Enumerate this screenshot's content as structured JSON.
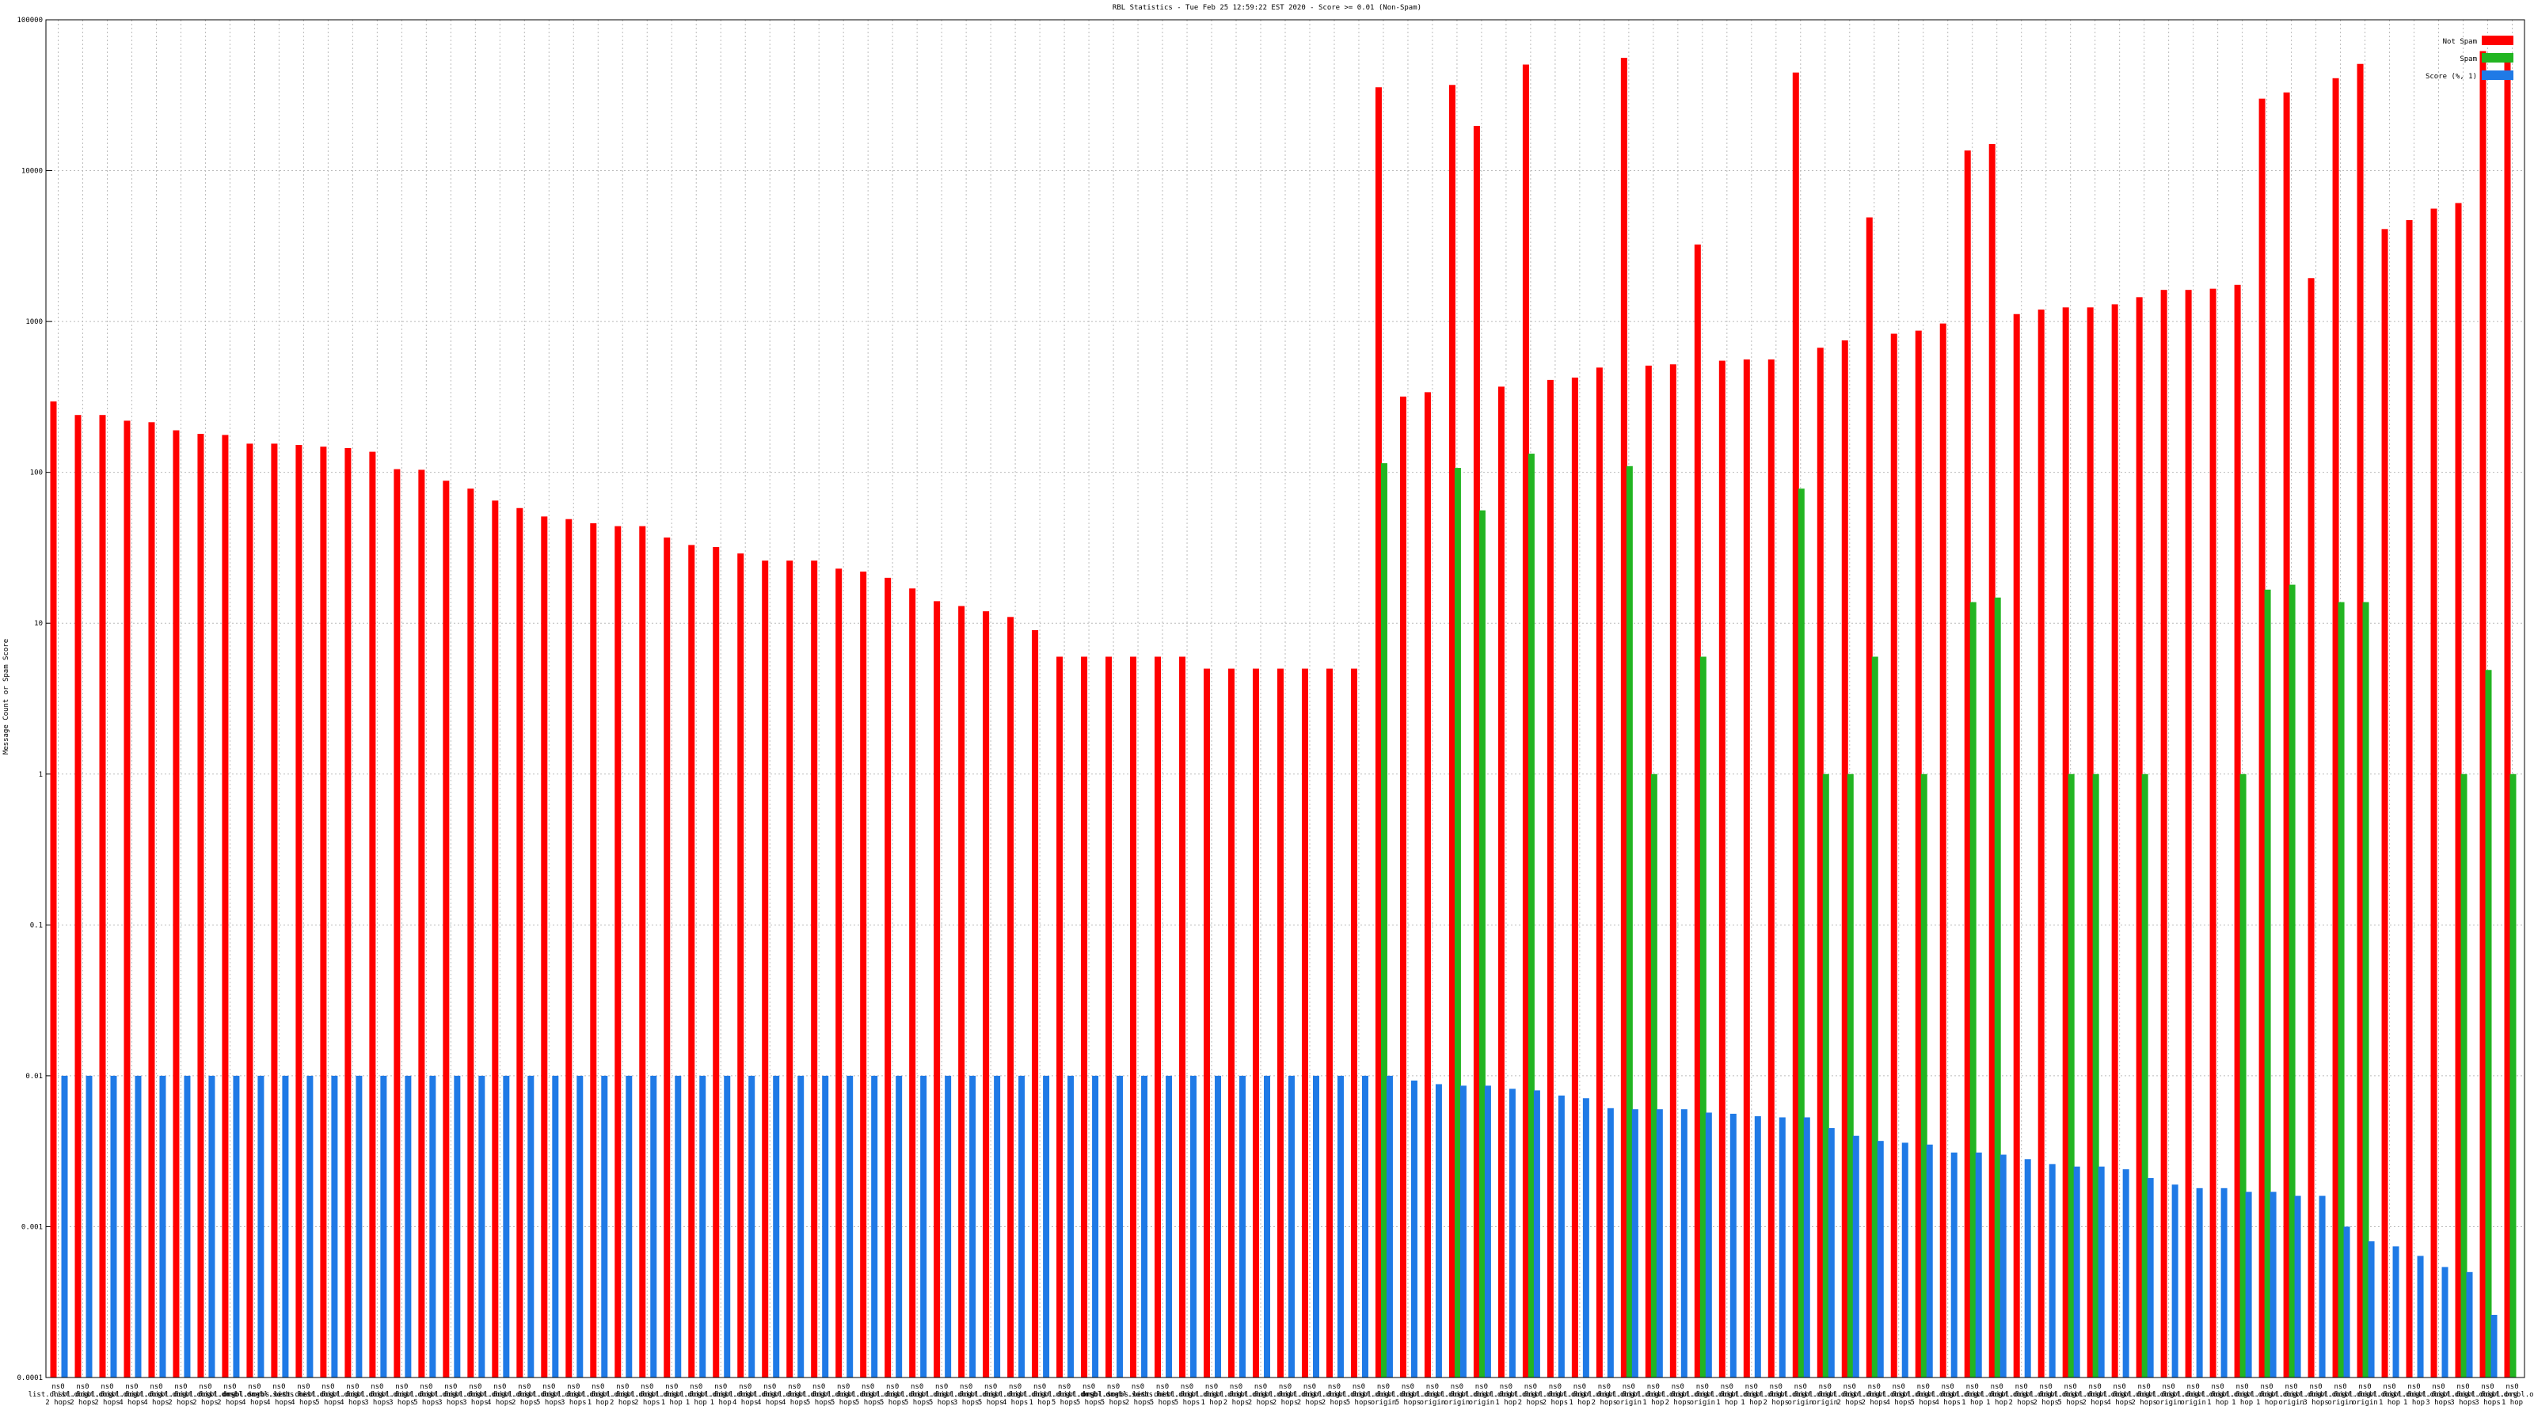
{
  "chart_data": {
    "type": "bar",
    "title": "RBL Statistics - Tue Feb 25 12:59:22 EST 2020 - Score >= 0.01 (Non-Spam)",
    "ylabel": "Message Count or Spam Score",
    "log_scale": true,
    "grid": true,
    "legend": "top-right",
    "ylim": [
      0.0001,
      100000
    ],
    "yticks": [
      100000,
      10000,
      1000,
      100,
      10,
      1,
      0.1,
      0.01,
      0.001,
      0.0001
    ],
    "categories": [
      "ns0\nlist.dnsbl.org\n2 hops",
      "ns0\nlist.dnsbl.org\n2 hops",
      "ns0\nlist.dnsbl.org\n2 hops",
      "ns0\nlist.dnsbl.org\n4 hops",
      "ns0\nlist.dnsbl.org\n4 hops",
      "ns0\nlist.dnsbl.org\n2 hops",
      "ns0\nlist.dnsbl.org\n2 hops",
      "ns0\nlist.dnsbl.org\n2 hops",
      "ns0\ndnsbl.sorbs.net\n4 hops",
      "ns0\ndnsbl.sorbs.net\n4 hops",
      "ns0\nlist.dnsbl.org\n4 hops",
      "ns0\nlist.dnsbl.org\n5 hops",
      "ns0\nlist.dnsbl.org\n4 hops",
      "ns0\nlist.dnsbl.org\n3 hops",
      "ns0\nlist.dnsbl.org\n3 hops",
      "ns0\nlist.dnsbl.org\n5 hops",
      "ns0\nlist.dnsbl.org\n3 hops",
      "ns0\nlist.dnsbl.org\n3 hops",
      "ns0\nlist.dnsbl.org\n4 hops",
      "ns0\nlist.dnsbl.org\n2 hops",
      "ns0\nlist.dnsbl.org\n5 hops",
      "ns0\nlist.dnsbl.org\n3 hops",
      "ns0\nlist.dnsbl.org\n1 hop",
      "ns0\nlist.dnsbl.org\n2 hops",
      "ns0\nlist.dnsbl.org\n2 hops",
      "ns0\nlist.dnsbl.org\n1 hop",
      "ns0\nlist.dnsbl.org\n1 hop",
      "ns0\nlist.dnsbl.org\n1 hop",
      "ns0\nlist.dnsbl.org\n4 hops",
      "ns0\nlist.dnsbl.org\n4 hops",
      "ns0\nlist.dnsbl.org\n4 hops",
      "ns0\nlist.dnsbl.org\n5 hops",
      "ns0\nlist.dnsbl.org\n5 hops",
      "ns0\nlist.dnsbl.org\n5 hops",
      "ns0\nlist.dnsbl.org\n5 hops",
      "ns0\nlist.dnsbl.org\n5 hops",
      "ns0\nlist.dnsbl.org\n5 hops",
      "ns0\nlist.dnsbl.org\n3 hops",
      "ns0\nlist.dnsbl.org\n5 hops",
      "ns0\nlist.dnsbl.org\n4 hops",
      "ns0\nlist.dnsbl.org\n1 hop",
      "ns0\nlist.dnsbl.org\n5 hops",
      "ns0\nlist.dnsbl.org\n5 hops",
      "ns0\ndnsbl.sorbs.net\n5 hops",
      "ns0\ndnsbl.sorbs.net\n2 hops",
      "ns0\nlist.dnsbl.org\n5 hops",
      "ns0\nlist.dnsbl.org\n5 hops",
      "ns0\nlist.dnsbl.org\n1 hop",
      "ns0\nlist.dnsbl.org\n2 hops",
      "ns0\nlist.dnsbl.org\n2 hops",
      "ns0\nlist.dnsbl.org\n2 hops",
      "ns0\nlist.dnsbl.org\n2 hops",
      "ns0\nlist.dnsbl.org\n2 hops",
      "ns0\nlist.dnsbl.org\n5 hops",
      "ns0\nlist.dnsbl.org\norigin",
      "ns0\nlist.dnsbl.org\n5 hops",
      "ns0\nlist.dnsbl.org\norigin",
      "ns0\nlist.dnsbl.org\norigin",
      "ns0\nlist.dnsbl.org\norigin",
      "ns0\nlist.dnsbl.org\n1 hop",
      "ns0\nlist.dnsbl.org\n2 hops",
      "ns0\nlist.dnsbl.org\n2 hops",
      "ns0\nlist.dnsbl.org\n1 hop",
      "ns0\nlist.dnsbl.org\n2 hops",
      "ns0\nlist.dnsbl.org\norigin",
      "ns0\nlist.dnsbl.org\n1 hop",
      "ns0\nlist.dnsbl.org\n2 hops",
      "ns0\nlist.dnsbl.org\norigin",
      "ns0\nlist.dnsbl.org\n1 hop",
      "ns0\nlist.dnsbl.org\n1 hop",
      "ns0\nlist.dnsbl.org\n2 hops",
      "ns0\nlist.dnsbl.org\norigin",
      "ns0\nlist.dnsbl.org\norigin",
      "ns0\nlist.dnsbl.org\n2 hops",
      "ns0\nlist.dnsbl.org\n2 hops",
      "ns0\nlist.dnsbl.org\n4 hops",
      "ns0\nlist.dnsbl.org\n5 hops",
      "ns0\nlist.dnsbl.org\n4 hops",
      "ns0\nlist.dnsbl.org\n1 hop",
      "ns0\nlist.dnsbl.org\n1 hop",
      "ns0\nlist.dnsbl.org\n2 hops",
      "ns0\nlist.dnsbl.org\n2 hops",
      "ns0\nlist.dnsbl.org\n5 hops",
      "ns0\nlist.dnsbl.org\n2 hops",
      "ns0\nlist.dnsbl.org\n4 hops",
      "ns0\nlist.dnsbl.org\n2 hops",
      "ns0\nlist.dnsbl.org\norigin",
      "ns0\nlist.dnsbl.org\norigin",
      "ns0\nlist.dnsbl.org\n1 hop",
      "ns0\nlist.dnsbl.org\n1 hop",
      "ns0\nlist.dnsbl.org\n1 hop",
      "ns0\nlist.dnsbl.org\norigin",
      "ns0\nlist.dnsbl.org\n3 hops",
      "ns0\nlist.dnsbl.org\norigin",
      "ns0\nlist.dnsbl.org\norigin",
      "ns0\nlist.dnsbl.org\n1 hop",
      "ns0\nlist.dnsbl.org\n1 hop",
      "ns0\nlist.dnsbl.org\n3 hops",
      "ns0\nlist.dnsbl.org\n3 hops",
      "ns0\nlist.dnsbl.org\n3 hops",
      "ns0\nlist.dnsbl.org\n1 hop"
    ],
    "series": [
      {
        "name": "Not Spam",
        "color": "#ff0000",
        "values": [
          295,
          240,
          240,
          220,
          215,
          190,
          180,
          177,
          155,
          155,
          152,
          148,
          145,
          137,
          105,
          104,
          88,
          78,
          65,
          58,
          51,
          49,
          46,
          44,
          44,
          37,
          33,
          32,
          29,
          26,
          26,
          26,
          23,
          22,
          20,
          17,
          14,
          13,
          12,
          11,
          9,
          6,
          6,
          6,
          6,
          6,
          6,
          5,
          5,
          5,
          5,
          5,
          5,
          5,
          35700,
          318,
          340,
          37000,
          19800,
          370,
          50500,
          410,
          425,
          495,
          55900,
          510,
          520,
          3240,
          550,
          560,
          560,
          44700,
          670,
          750,
          4900,
          830,
          870,
          970,
          13600,
          15000,
          1120,
          1200,
          1240,
          1240,
          1300,
          1450,
          1620,
          1620,
          1650,
          1750,
          30000,
          33000,
          1940,
          41000,
          51000,
          4100,
          4700,
          5600,
          6100,
          62000,
          57000
        ]
      },
      {
        "name": "Spam",
        "color": "#22b522",
        "values": [
          null,
          null,
          null,
          null,
          null,
          null,
          null,
          null,
          null,
          null,
          null,
          null,
          null,
          null,
          null,
          null,
          null,
          null,
          null,
          null,
          null,
          null,
          null,
          null,
          null,
          null,
          null,
          null,
          null,
          null,
          null,
          null,
          null,
          null,
          null,
          null,
          null,
          null,
          null,
          null,
          null,
          null,
          null,
          null,
          null,
          null,
          null,
          null,
          null,
          null,
          null,
          null,
          null,
          null,
          115,
          null,
          null,
          107,
          56,
          null,
          133,
          null,
          null,
          null,
          110,
          1,
          null,
          6,
          null,
          null,
          null,
          78,
          1,
          1,
          6,
          null,
          1,
          null,
          13.8,
          14.8,
          null,
          null,
          1,
          1,
          null,
          1,
          null,
          null,
          null,
          1,
          16.7,
          18,
          null,
          13.8,
          13.8,
          null,
          null,
          null,
          1,
          4.9,
          1
        ]
      },
      {
        "name": "Score (%, 1)",
        "color": "#1f7ae6",
        "values": [
          0.01,
          0.01,
          0.01,
          0.01,
          0.01,
          0.01,
          0.01,
          0.01,
          0.01,
          0.01,
          0.01,
          0.01,
          0.01,
          0.01,
          0.01,
          0.01,
          0.01,
          0.01,
          0.01,
          0.01,
          0.01,
          0.01,
          0.01,
          0.01,
          0.01,
          0.01,
          0.01,
          0.01,
          0.01,
          0.01,
          0.01,
          0.01,
          0.01,
          0.01,
          0.01,
          0.01,
          0.01,
          0.01,
          0.01,
          0.01,
          0.01,
          0.01,
          0.01,
          0.01,
          0.01,
          0.01,
          0.01,
          0.01,
          0.01,
          0.01,
          0.01,
          0.01,
          0.01,
          0.01,
          0.01,
          0.0093,
          0.0088,
          0.0086,
          0.0086,
          0.0082,
          0.008,
          0.0074,
          0.0071,
          0.0061,
          0.006,
          0.006,
          0.006,
          0.0057,
          0.0056,
          0.0054,
          0.0053,
          0.0053,
          0.0045,
          0.004,
          0.0037,
          0.0036,
          0.0035,
          0.0031,
          0.0031,
          0.003,
          0.0028,
          0.0026,
          0.0025,
          0.0025,
          0.0024,
          0.0021,
          0.0019,
          0.0018,
          0.0018,
          0.0017,
          0.0017,
          0.0016,
          0.0016,
          0.001,
          0.0008,
          0.00074,
          0.00064,
          0.00054,
          0.0005,
          0.00026,
          null
        ]
      }
    ]
  }
}
